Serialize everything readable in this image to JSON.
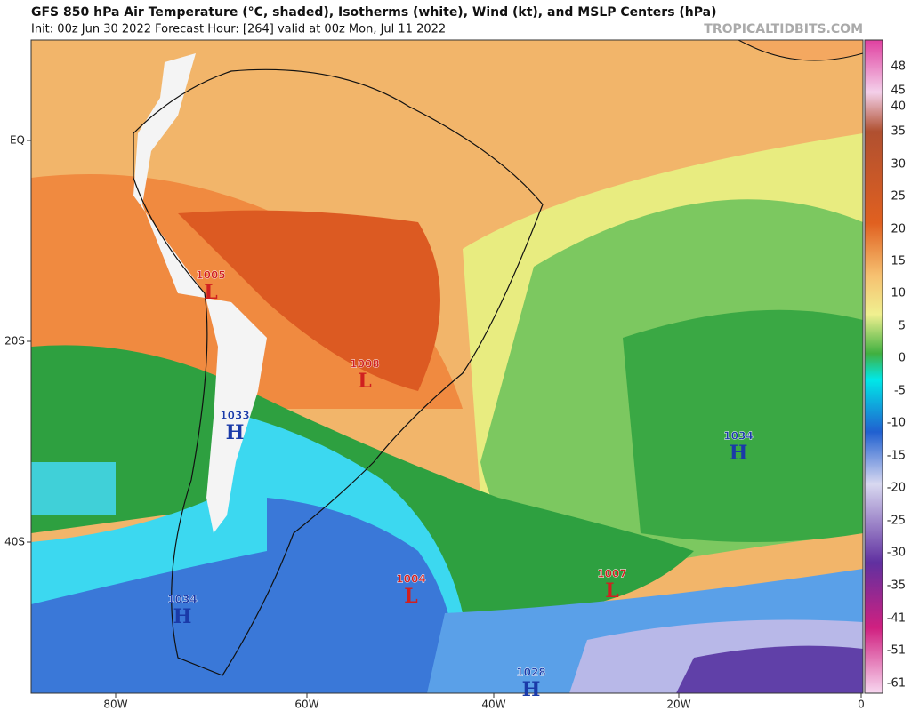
{
  "header": {
    "title": "GFS 850 hPa Air Temperature (°C, shaded), Isotherms (white), Wind (kt), and MSLP Centers (hPa)",
    "subtitle": "Init: 00z Jun 30 2022   Forecast Hour: [264]   valid at 00z Mon, Jul 11 2022",
    "brand": "TROPICALTIDBITS.COM"
  },
  "lat_labels": [
    "EQ",
    "20S",
    "40S"
  ],
  "lon_labels": [
    "80W",
    "60W",
    "40W",
    "20W",
    "0"
  ],
  "colorbar": {
    "ticks": [
      "48",
      "45",
      "40",
      "35",
      "30",
      "25",
      "20",
      "15",
      "10",
      "5",
      "0",
      "-5",
      "-10",
      "-15",
      "-20",
      "-25",
      "-30",
      "-35",
      "-41",
      "-51",
      "-61"
    ]
  },
  "centers": [
    {
      "letter": "L",
      "value": "1005"
    },
    {
      "letter": "L",
      "value": "1008"
    },
    {
      "letter": "H",
      "value": "1033"
    },
    {
      "letter": "H",
      "value": "1034"
    },
    {
      "letter": "L",
      "value": "1004"
    },
    {
      "letter": "L",
      "value": "1007"
    },
    {
      "letter": "H",
      "value": "1034"
    },
    {
      "letter": "H",
      "value": "1028"
    }
  ]
}
